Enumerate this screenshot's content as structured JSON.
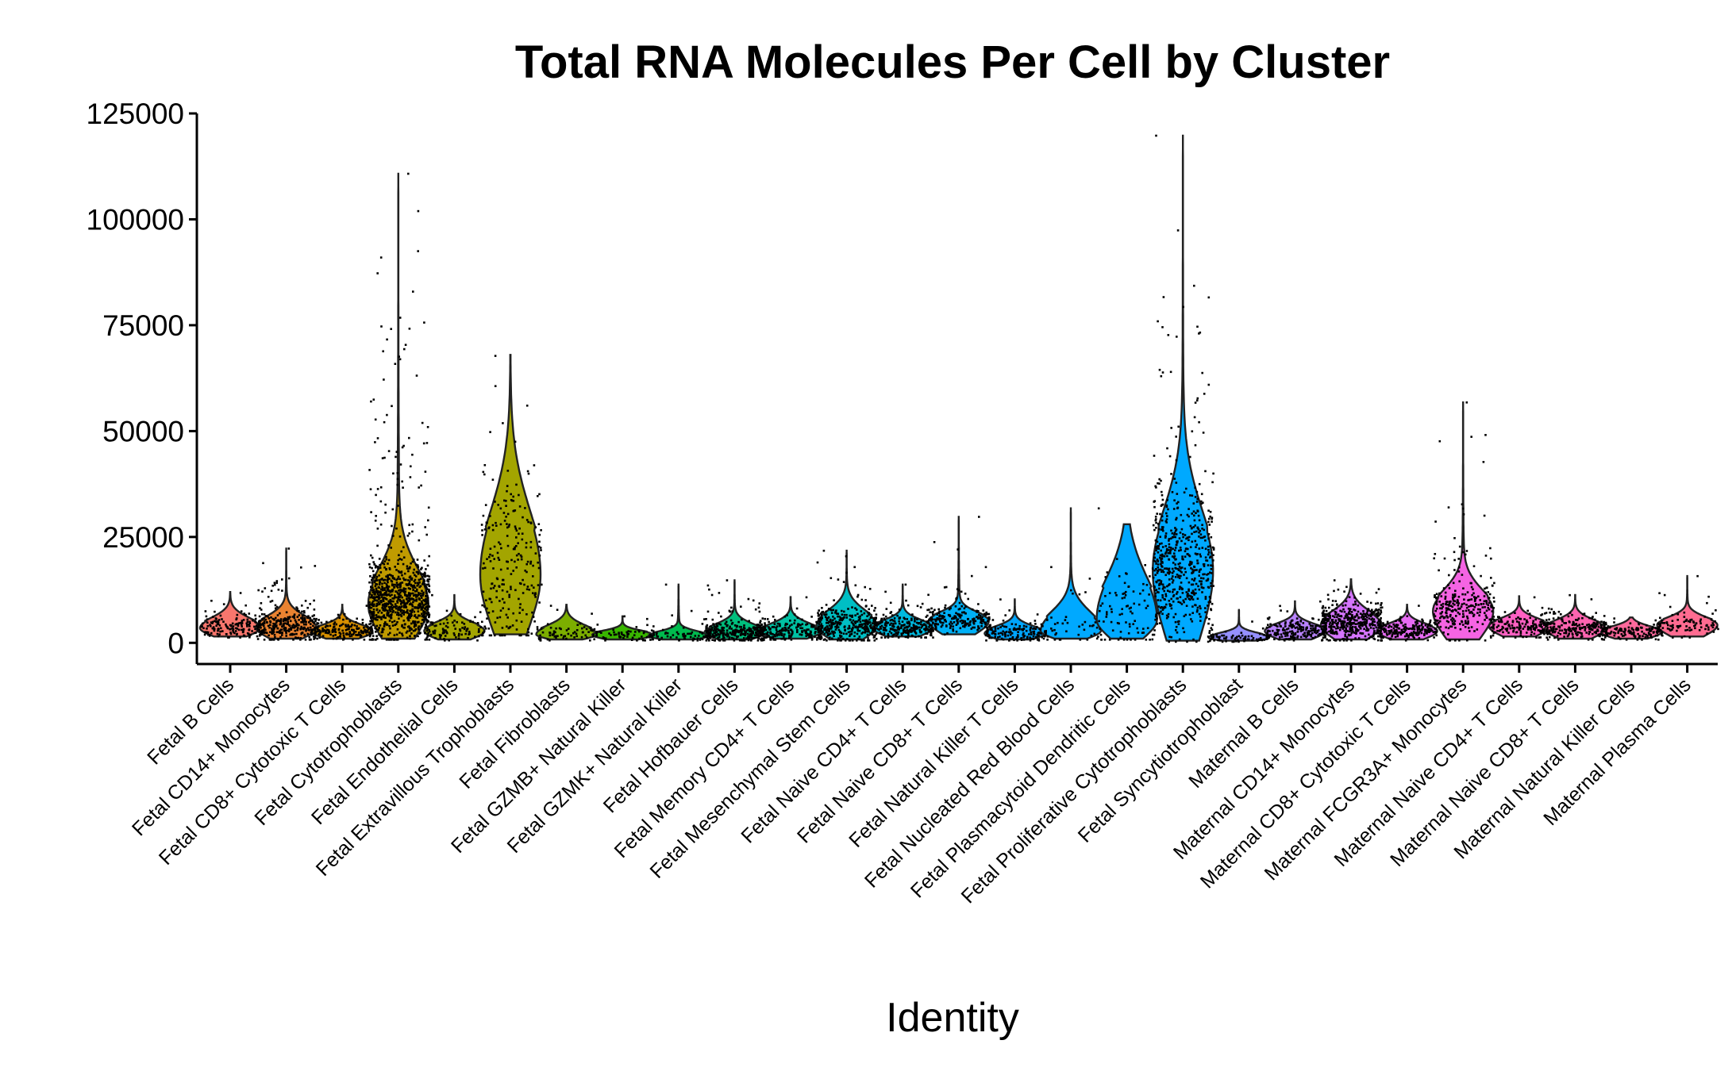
{
  "chart_data": {
    "type": "violin",
    "title": "Total RNA Molecules Per Cell by Cluster",
    "xlabel": "Identity",
    "ylabel": "",
    "ylim": [
      -5000,
      125000
    ],
    "yticks": [
      0,
      25000,
      50000,
      75000,
      100000,
      125000
    ],
    "ytick_labels": [
      "0",
      "25000",
      "50000",
      "75000",
      "100000",
      "125000"
    ],
    "grid": false,
    "legend": "none",
    "point_color": "#000000",
    "categories": [
      {
        "name": "Fetal B Cells",
        "color": "#F8766D",
        "min": 1500,
        "q1": 2800,
        "median": 3800,
        "q3": 5200,
        "max": 12000,
        "mode": 3500,
        "n_points": 160
      },
      {
        "name": "Fetal CD14+ Monocytes",
        "color": "#EA8331",
        "min": 1000,
        "q1": 2800,
        "median": 3900,
        "q3": 5500,
        "max": 22500,
        "mode": 3600,
        "n_points": 320
      },
      {
        "name": "Fetal CD8+ Cytotoxic T Cells",
        "color": "#D89000",
        "min": 1000,
        "q1": 2000,
        "median": 2800,
        "q3": 3800,
        "max": 9000,
        "mode": 2600,
        "n_points": 180
      },
      {
        "name": "Fetal Cytotrophoblasts",
        "color": "#C09B00",
        "min": 1000,
        "q1": 6500,
        "median": 10000,
        "q3": 15000,
        "max": 111000,
        "mode": 9000,
        "n_points": 900
      },
      {
        "name": "Fetal Endothelial Cells",
        "color": "#A3A500",
        "min": 800,
        "q1": 2000,
        "median": 3000,
        "q3": 4200,
        "max": 11500,
        "mode": 2800,
        "n_points": 90
      },
      {
        "name": "Fetal Extravillous Trophoblasts",
        "color": "#A3A500",
        "min": 2000,
        "q1": 9000,
        "median": 17000,
        "q3": 27000,
        "max": 68000,
        "mode": 16000,
        "n_points": 240
      },
      {
        "name": "Fetal Fibroblasts",
        "color": "#7CAE00",
        "min": 800,
        "q1": 1500,
        "median": 2200,
        "q3": 3500,
        "max": 9000,
        "mode": 2000,
        "n_points": 70
      },
      {
        "name": "Fetal GZMB+ Natural Killer",
        "color": "#39B600",
        "min": 800,
        "q1": 1400,
        "median": 2000,
        "q3": 2600,
        "max": 6500,
        "mode": 1900,
        "n_points": 60
      },
      {
        "name": "Fetal GZMK+ Natural Killer",
        "color": "#00BB4E",
        "min": 800,
        "q1": 1200,
        "median": 1700,
        "q3": 2400,
        "max": 14000,
        "mode": 1600,
        "n_points": 70
      },
      {
        "name": "Fetal Hofbauer Cells",
        "color": "#00BF7D",
        "min": 800,
        "q1": 1800,
        "median": 2600,
        "q3": 3800,
        "max": 15000,
        "mode": 2400,
        "n_points": 320
      },
      {
        "name": "Fetal Memory CD4+ T Cells",
        "color": "#00C1A3",
        "min": 1000,
        "q1": 2000,
        "median": 2800,
        "q3": 4000,
        "max": 11000,
        "mode": 2600,
        "n_points": 200
      },
      {
        "name": "Fetal Mesenchymal Stem Cells",
        "color": "#00BFC4",
        "min": 800,
        "q1": 2800,
        "median": 4300,
        "q3": 6500,
        "max": 22000,
        "mode": 4000,
        "n_points": 340
      },
      {
        "name": "Fetal Naive CD4+ T Cells",
        "color": "#00BAE0",
        "min": 1500,
        "q1": 2700,
        "median": 3700,
        "q3": 4800,
        "max": 14000,
        "mode": 3500,
        "n_points": 260
      },
      {
        "name": "Fetal Naive CD8+ T Cells",
        "color": "#00B0F6",
        "min": 2000,
        "q1": 4000,
        "median": 5300,
        "q3": 6600,
        "max": 30000,
        "mode": 5200,
        "n_points": 200
      },
      {
        "name": "Fetal Natural Killer T Cells",
        "color": "#00A5FF",
        "min": 800,
        "q1": 1600,
        "median": 2300,
        "q3": 3400,
        "max": 10500,
        "mode": 2200,
        "n_points": 150
      },
      {
        "name": "Fetal Nucleated Red Blood Cells",
        "color": "#00A9FF",
        "min": 1000,
        "q1": 2000,
        "median": 3500,
        "q3": 6000,
        "max": 32000,
        "mode": 2800,
        "n_points": 50
      },
      {
        "name": "Fetal Plasmacytoid Dendritic Cells",
        "color": "#00A9FF",
        "min": 1000,
        "q1": 4000,
        "median": 8000,
        "q3": 13000,
        "max": 28000,
        "mode": 5500,
        "n_points": 90
      },
      {
        "name": "Fetal Proliferative Cytotrophoblasts",
        "color": "#00A9FF",
        "min": 500,
        "q1": 12000,
        "median": 18000,
        "q3": 27000,
        "max": 120000,
        "mode": 17000,
        "n_points": 600
      },
      {
        "name": "Fetal Syncytiotrophoblast",
        "color": "#9590FF",
        "min": 500,
        "q1": 900,
        "median": 1300,
        "q3": 2000,
        "max": 8000,
        "mode": 1200,
        "n_points": 70
      },
      {
        "name": "Maternal B Cells",
        "color": "#B983FF",
        "min": 800,
        "q1": 2000,
        "median": 2900,
        "q3": 4000,
        "max": 10000,
        "mode": 2800,
        "n_points": 200
      },
      {
        "name": "Maternal CD14+ Monocytes",
        "color": "#D575FE",
        "min": 800,
        "q1": 3000,
        "median": 4500,
        "q3": 6500,
        "max": 15000,
        "mode": 4200,
        "n_points": 420
      },
      {
        "name": "Maternal CD8+ Cytotoxic T Cells",
        "color": "#E76BF3",
        "min": 800,
        "q1": 2000,
        "median": 2900,
        "q3": 4000,
        "max": 9000,
        "mode": 2800,
        "n_points": 200
      },
      {
        "name": "Maternal FCGR3A+ Monocytes",
        "color": "#F564E3",
        "min": 800,
        "q1": 5500,
        "median": 8000,
        "q3": 11000,
        "max": 57000,
        "mode": 7500,
        "n_points": 280
      },
      {
        "name": "Maternal Naive CD4+ T Cells",
        "color": "#FF61C3",
        "min": 1500,
        "q1": 3000,
        "median": 4000,
        "q3": 5200,
        "max": 11000,
        "mode": 3900,
        "n_points": 170
      },
      {
        "name": "Maternal Naive CD8+ T Cells",
        "color": "#FF64B0",
        "min": 1000,
        "q1": 2500,
        "median": 3500,
        "q3": 4800,
        "max": 11500,
        "mode": 3400,
        "n_points": 200
      },
      {
        "name": "Maternal Natural Killer Cells",
        "color": "#FF699C",
        "min": 1000,
        "q1": 1900,
        "median": 2600,
        "q3": 3500,
        "max": 6000,
        "mode": 2500,
        "n_points": 140
      },
      {
        "name": "Maternal Plasma Cells",
        "color": "#FF6C91",
        "min": 1500,
        "q1": 3000,
        "median": 4300,
        "q3": 5500,
        "max": 16000,
        "mode": 4200,
        "n_points": 90
      }
    ]
  }
}
